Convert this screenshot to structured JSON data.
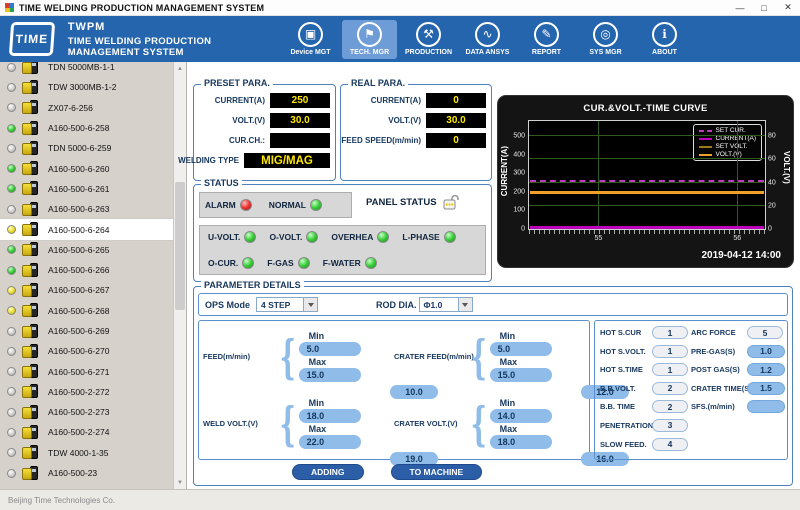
{
  "window": {
    "title": "TIME WELDING PRODUCTION MANAGEMENT SYSTEM",
    "controls": [
      {
        "name": "minimize",
        "glyph": "—"
      },
      {
        "name": "maximize",
        "glyph": "□"
      },
      {
        "name": "close",
        "glyph": "✕"
      }
    ]
  },
  "header": {
    "logo_text": "TIME",
    "app_short": "TWPM",
    "app_full": "TIME WELDING PRODUCTION MANAGEMENT SYSTEM",
    "nav": [
      {
        "label": "Device MGT",
        "icon": "device-mgt-icon",
        "glyph": "▣",
        "active": false
      },
      {
        "label": "TECH. MGR",
        "icon": "tech-mgr-icon",
        "glyph": "⚑",
        "active": true
      },
      {
        "label": "PRODUCTION",
        "icon": "production-icon",
        "glyph": "⚒",
        "active": false
      },
      {
        "label": "DATA ANSYS",
        "icon": "data-ansys-icon",
        "glyph": "∿",
        "active": false
      },
      {
        "label": "REPORT",
        "icon": "report-icon",
        "glyph": "✎",
        "active": false
      },
      {
        "label": "SYS MGR",
        "icon": "sys-mgr-icon",
        "glyph": "◎",
        "active": false
      },
      {
        "label": "ABOUT",
        "icon": "about-icon",
        "glyph": "ℹ",
        "active": false
      }
    ]
  },
  "sidebar": {
    "items": [
      {
        "label": "TDN 5000MB-1-1",
        "status": "gray",
        "selected": false
      },
      {
        "label": "TDW 3000MB-1-2",
        "status": "gray",
        "selected": false
      },
      {
        "label": "ZX07-6-256",
        "status": "gray",
        "selected": false
      },
      {
        "label": "A160-500-6-258",
        "status": "green",
        "selected": false
      },
      {
        "label": "TDN 5000-6-259",
        "status": "gray",
        "selected": false
      },
      {
        "label": "A160-500-6-260",
        "status": "green",
        "selected": false
      },
      {
        "label": "A160-500-6-261",
        "status": "green",
        "selected": false
      },
      {
        "label": "A160-500-6-263",
        "status": "gray",
        "selected": false
      },
      {
        "label": "A160-500-6-264",
        "status": "yellow",
        "selected": true
      },
      {
        "label": "A160-500-6-265",
        "status": "green",
        "selected": false
      },
      {
        "label": "A160-500-6-266",
        "status": "green",
        "selected": false
      },
      {
        "label": "A160-500-6-267",
        "status": "yellow",
        "selected": false
      },
      {
        "label": "A160-500-6-268",
        "status": "yellow",
        "selected": false
      },
      {
        "label": "A160-500-6-269",
        "status": "gray",
        "selected": false
      },
      {
        "label": "A160-500-6-270",
        "status": "gray",
        "selected": false
      },
      {
        "label": "A160-500-6-271",
        "status": "gray",
        "selected": false
      },
      {
        "label": "A160-500-2-272",
        "status": "gray",
        "selected": false
      },
      {
        "label": "A160-500-2-273",
        "status": "gray",
        "selected": false
      },
      {
        "label": "A160-500-2-274",
        "status": "gray",
        "selected": false
      },
      {
        "label": "TDW 4000-1-35",
        "status": "gray",
        "selected": false
      },
      {
        "label": "A160-500-23",
        "status": "gray",
        "selected": false
      }
    ]
  },
  "footer": {
    "text": "Beijing Time Technologies Co."
  },
  "preset": {
    "title": "PRESET PARA.",
    "rows": [
      {
        "label": "CURRENT(A)",
        "value": "250",
        "wide": false
      },
      {
        "label": "VOLT.(V)",
        "value": "30.0",
        "wide": false
      },
      {
        "label": "CUR.CH.:",
        "value": "",
        "wide": false
      },
      {
        "label": "WELDING TYPE",
        "value": "MIG/MAG",
        "wide": true
      }
    ]
  },
  "real": {
    "title": "REAL PARA.",
    "rows": [
      {
        "label": "CURRENT(A)",
        "value": "0",
        "wide": false
      },
      {
        "label": "VOLT.(V)",
        "value": "30.0",
        "wide": false
      },
      {
        "label": "FEED SPEED(m/min)",
        "value": "0",
        "wide": false
      }
    ]
  },
  "status": {
    "title": "STATUS",
    "top_leds": [
      {
        "label": "ALARM",
        "state": "red"
      },
      {
        "label": "NORMAL",
        "state": "green"
      }
    ],
    "panel_status_label": "PANEL STATUS",
    "panel_lock_state": "unlocked",
    "led_rows": [
      [
        {
          "label": "U-VOLT.",
          "state": "green"
        },
        {
          "label": "O-VOLT.",
          "state": "green"
        },
        {
          "label": "OVERHEA",
          "state": "green"
        },
        {
          "label": "L-PHASE",
          "state": "green"
        }
      ],
      [
        {
          "label": "O-CUR.",
          "state": "green"
        },
        {
          "label": "F-GAS",
          "state": "green"
        },
        {
          "label": "F-WATER",
          "state": "green"
        }
      ]
    ]
  },
  "chart_data": {
    "type": "line",
    "title": "CUR.&VOLT.-TIME CURVE",
    "timestamp_label": "2019-04-12 14:00",
    "legend_position": "top-right",
    "grid": true,
    "grid_color": "#2f5c1e",
    "x_axis": {
      "min": 54.5,
      "max": 56.2,
      "ticks": [
        55,
        56
      ]
    },
    "left_axis": {
      "label": "CURRENT(A)",
      "min": 0,
      "max": 580,
      "ticks": [
        0,
        100,
        200,
        300,
        400,
        500
      ]
    },
    "right_axis": {
      "label": "VOLT.(V)",
      "min": 0,
      "max": 93,
      "ticks": [
        0,
        20,
        40,
        60,
        80
      ]
    },
    "series": [
      {
        "name": "SET CUR.",
        "axis": "left",
        "value": 250,
        "color": "#c03cc0",
        "style": "dashed",
        "width": 2
      },
      {
        "name": "CURRENT(A)",
        "axis": "left",
        "value": 0,
        "color": "#bb00bb",
        "style": "solid",
        "width": 3
      },
      {
        "name": "SET VOLT.",
        "axis": "right",
        "value": 30,
        "color": "#a07818",
        "style": "solid",
        "width": 2
      },
      {
        "name": "VOLT.(V)",
        "axis": "right",
        "value": 30,
        "color": "#f0a028",
        "style": "solid",
        "width": 3
      }
    ]
  },
  "params": {
    "title": "PARAMETER DETAILS",
    "ops_mode_label": "OPS Mode",
    "ops_mode_value": "4 STEP",
    "rod_dia_label": "ROD DIA.",
    "rod_dia_value": "Φ1.0",
    "min_label": "Min",
    "max_label": "Max",
    "clusters": [
      {
        "label": "FEED(m/min)",
        "value": "10.0",
        "min": "5.0",
        "max": "15.0"
      },
      {
        "label": "CRATER FEED(m/min)",
        "value": "12.0",
        "min": "5.0",
        "max": "15.0"
      },
      {
        "label": "WELD VOLT.(V)",
        "value": "19.0",
        "min": "18.0",
        "max": "22.0"
      },
      {
        "label": "CRATER VOLT.(V)",
        "value": "16.0",
        "min": "14.0",
        "max": "18.0"
      }
    ],
    "detail_col_a": [
      {
        "label": "HOT S.CUR",
        "value": "1",
        "style": "gray"
      },
      {
        "label": "HOT S.VOLT.",
        "value": "1",
        "style": "gray"
      },
      {
        "label": "HOT S.TIME",
        "value": "1",
        "style": "gray"
      },
      {
        "label": "B.B.VOLT.",
        "value": "2",
        "style": "gray"
      },
      {
        "label": "B.B. TIME",
        "value": "2",
        "style": "gray"
      },
      {
        "label": "PENETRATION",
        "value": "3",
        "style": "gray"
      },
      {
        "label": "SLOW FEED.",
        "value": "4",
        "style": "gray"
      }
    ],
    "detail_col_b": [
      {
        "label": "ARC FORCE",
        "value": "5",
        "style": "gray"
      },
      {
        "label": "PRE-GAS(S)",
        "value": "1.0",
        "style": "blue"
      },
      {
        "label": "POST GAS(S)",
        "value": "1.2",
        "style": "blue"
      },
      {
        "label": "CRATER TIME(S)",
        "value": "1.5",
        "style": "blue"
      },
      {
        "label": "SFS.(m/min)",
        "value": "",
        "style": "blue"
      }
    ],
    "buttons": [
      {
        "label": "ADDING"
      },
      {
        "label": "TO MACHINE"
      }
    ]
  },
  "colors": {
    "header_blue": "#2565ad",
    "nav_active": "#6d9cd6",
    "groupbox_border": "#4f81bd",
    "value_box_bg": "#000000",
    "value_box_fg": "#ffe800",
    "pill_blue": "#8fbce9",
    "button_blue": "#2b5ea7",
    "led_green": "#39cf39",
    "led_red": "#ee3232",
    "led_yellow": "#f0e030"
  }
}
